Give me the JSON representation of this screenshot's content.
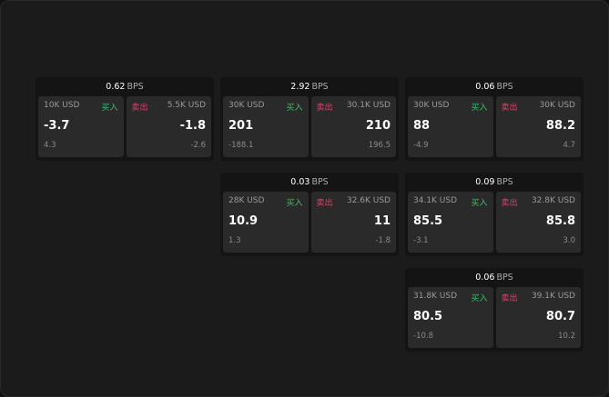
{
  "side_labels": {
    "buy": "买入",
    "sell": "卖出"
  },
  "unit": "BPS",
  "colors": {
    "buy": "#3fbf6a",
    "sell": "#e0406a",
    "card": "#141414",
    "tile": "#2a2a2a"
  },
  "cards": [
    {
      "spread": "0.62",
      "bid": {
        "size": "10K USD",
        "price": "-3.7",
        "change": "4.3"
      },
      "ask": {
        "size": "5.5K USD",
        "price": "-1.8",
        "change": "-2.6"
      }
    },
    {
      "spread": "2.92",
      "bid": {
        "size": "30K USD",
        "price": "201",
        "change": "-188.1"
      },
      "ask": {
        "size": "30.1K USD",
        "price": "210",
        "change": "196.5"
      }
    },
    {
      "spread": "0.06",
      "bid": {
        "size": "30K USD",
        "price": "88",
        "change": "-4.9"
      },
      "ask": {
        "size": "30K USD",
        "price": "88.2",
        "change": "4.7"
      }
    },
    {
      "spread": "0.03",
      "bid": {
        "size": "28K USD",
        "price": "10.9",
        "change": "1.3"
      },
      "ask": {
        "size": "32.6K USD",
        "price": "11",
        "change": "-1.8"
      }
    },
    {
      "spread": "0.09",
      "bid": {
        "size": "34.1K USD",
        "price": "85.5",
        "change": "-3.1"
      },
      "ask": {
        "size": "32.8K USD",
        "price": "85.8",
        "change": "3.0"
      }
    },
    {
      "spread": "0.06",
      "bid": {
        "size": "31.8K USD",
        "price": "80.5",
        "change": "-10.8"
      },
      "ask": {
        "size": "39.1K USD",
        "price": "80.7",
        "change": "10.2"
      }
    }
  ]
}
